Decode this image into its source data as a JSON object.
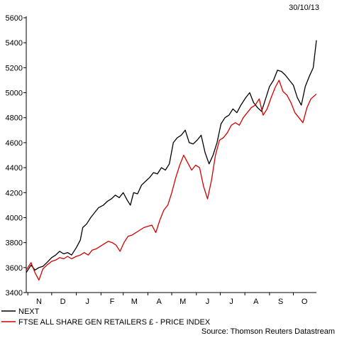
{
  "chart_data": {
    "type": "line",
    "date": "30/10/13",
    "ylim": [
      3400,
      5600
    ],
    "yticks": [
      3400,
      3600,
      3800,
      4000,
      4200,
      4400,
      4600,
      4800,
      5000,
      5200,
      5400,
      5600
    ],
    "xlabels": [
      "N",
      "D",
      "J",
      "F",
      "M",
      "A",
      "M",
      "J",
      "J",
      "A",
      "S",
      "O"
    ],
    "x_start": "2012-10-30",
    "x_end": "2013-10-30",
    "xlabel_dates": [
      "2012-11-15",
      "2012-12-15",
      "2013-01-15",
      "2013-02-15",
      "2013-03-15",
      "2013-04-15",
      "2013-05-15",
      "2013-06-15",
      "2013-07-15",
      "2013-08-15",
      "2013-09-15",
      "2013-10-15"
    ],
    "series": [
      {
        "name": "NEXT",
        "color": "#000000",
        "x": [
          "2012-10-30",
          "2012-11-05",
          "2012-11-10",
          "2012-11-15",
          "2012-11-20",
          "2012-11-25",
          "2012-12-01",
          "2012-12-06",
          "2012-12-11",
          "2012-12-16",
          "2012-12-21",
          "2012-12-26",
          "2013-01-01",
          "2013-01-06",
          "2013-01-09",
          "2013-01-14",
          "2013-01-19",
          "2013-01-24",
          "2013-01-29",
          "2013-02-04",
          "2013-02-09",
          "2013-02-14",
          "2013-02-19",
          "2013-02-24",
          "2013-03-01",
          "2013-03-06",
          "2013-03-10",
          "2013-03-14",
          "2013-03-19",
          "2013-03-24",
          "2013-03-29",
          "2013-04-03",
          "2013-04-08",
          "2013-04-13",
          "2013-04-18",
          "2013-04-23",
          "2013-04-28",
          "2013-05-03",
          "2013-05-08",
          "2013-05-13",
          "2013-05-18",
          "2013-05-23",
          "2013-05-28",
          "2013-06-02",
          "2013-06-07",
          "2013-06-12",
          "2013-06-17",
          "2013-06-22",
          "2013-06-27",
          "2013-07-02",
          "2013-07-07",
          "2013-07-12",
          "2013-07-17",
          "2013-07-22",
          "2013-07-27",
          "2013-08-02",
          "2013-08-07",
          "2013-08-12",
          "2013-08-17",
          "2013-08-22",
          "2013-08-27",
          "2013-09-01",
          "2013-09-06",
          "2013-09-11",
          "2013-09-16",
          "2013-09-21",
          "2013-09-26",
          "2013-10-01",
          "2013-10-06",
          "2013-10-11",
          "2013-10-16",
          "2013-10-21",
          "2013-10-26",
          "2013-10-30"
        ],
        "values": [
          3560,
          3620,
          3580,
          3600,
          3610,
          3640,
          3680,
          3700,
          3730,
          3710,
          3720,
          3700,
          3760,
          3820,
          3920,
          3950,
          4000,
          4040,
          4080,
          4100,
          4130,
          4150,
          4180,
          4160,
          4200,
          4140,
          4100,
          4200,
          4190,
          4260,
          4290,
          4320,
          4360,
          4350,
          4400,
          4380,
          4430,
          4600,
          4640,
          4660,
          4700,
          4600,
          4590,
          4620,
          4660,
          4520,
          4430,
          4500,
          4600,
          4750,
          4800,
          4820,
          4870,
          4840,
          4900,
          4960,
          5000,
          4920,
          4880,
          4850,
          4950,
          5050,
          5100,
          5180,
          5170,
          5140,
          5100,
          5060,
          4960,
          4900,
          5050,
          5130,
          5200,
          5420
        ]
      },
      {
        "name": "FTSE ALL SHARE GEN RETAILERS £ - PRICE INDEX",
        "color": "#d40000",
        "x": [
          "2012-10-30",
          "2012-11-05",
          "2012-11-10",
          "2012-11-15",
          "2012-11-20",
          "2012-11-25",
          "2012-12-01",
          "2012-12-06",
          "2012-12-11",
          "2012-12-16",
          "2012-12-21",
          "2012-12-26",
          "2013-01-01",
          "2013-01-06",
          "2013-01-11",
          "2013-01-16",
          "2013-01-21",
          "2013-01-26",
          "2013-01-31",
          "2013-02-05",
          "2013-02-10",
          "2013-02-15",
          "2013-02-20",
          "2013-02-25",
          "2013-03-02",
          "2013-03-07",
          "2013-03-12",
          "2013-03-17",
          "2013-03-22",
          "2013-03-27",
          "2013-04-01",
          "2013-04-06",
          "2013-04-11",
          "2013-04-16",
          "2013-04-21",
          "2013-04-26",
          "2013-05-01",
          "2013-05-06",
          "2013-05-11",
          "2013-05-16",
          "2013-05-21",
          "2013-05-26",
          "2013-05-31",
          "2013-06-05",
          "2013-06-10",
          "2013-06-15",
          "2013-06-20",
          "2013-06-25",
          "2013-06-30",
          "2013-07-05",
          "2013-07-10",
          "2013-07-15",
          "2013-07-20",
          "2013-07-25",
          "2013-07-30",
          "2013-08-04",
          "2013-08-09",
          "2013-08-14",
          "2013-08-19",
          "2013-08-24",
          "2013-08-29",
          "2013-09-03",
          "2013-09-08",
          "2013-09-13",
          "2013-09-18",
          "2013-09-23",
          "2013-09-28",
          "2013-10-03",
          "2013-10-08",
          "2013-10-13",
          "2013-10-18",
          "2013-10-23",
          "2013-10-30"
        ],
        "values": [
          3580,
          3640,
          3560,
          3500,
          3590,
          3620,
          3650,
          3660,
          3680,
          3670,
          3690,
          3670,
          3690,
          3700,
          3720,
          3700,
          3740,
          3750,
          3770,
          3790,
          3810,
          3800,
          3780,
          3730,
          3800,
          3850,
          3860,
          3880,
          3900,
          3920,
          3930,
          3940,
          3880,
          3980,
          4060,
          4100,
          4200,
          4320,
          4420,
          4500,
          4440,
          4380,
          4420,
          4400,
          4250,
          4150,
          4300,
          4500,
          4620,
          4640,
          4680,
          4740,
          4760,
          4740,
          4800,
          4840,
          4880,
          4900,
          4950,
          4820,
          4870,
          4960,
          5040,
          5100,
          5010,
          4980,
          4920,
          4840,
          4800,
          4760,
          4880,
          4950,
          4990
        ]
      }
    ]
  },
  "legend": [
    {
      "label": "NEXT",
      "color": "#000000"
    },
    {
      "label": "FTSE ALL SHARE GEN RETAILERS £ - PRICE INDEX",
      "color": "#d40000"
    }
  ],
  "source": "Source: Thomson Reuters Datastream"
}
